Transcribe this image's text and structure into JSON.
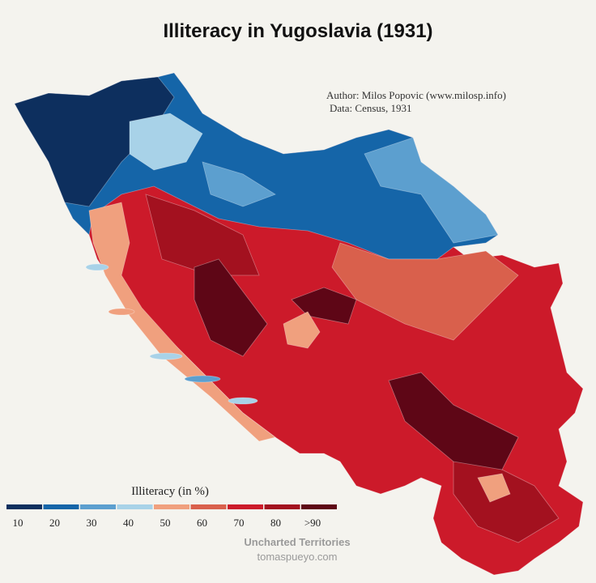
{
  "title": "Illiteracy in Yugoslavia (1931)",
  "credits": [
    "Author: Milos Popovic (www.milosp.info)",
    "Data: Census, 1931"
  ],
  "legend": {
    "title": "Illiteracy (in %)",
    "labels": [
      "10",
      "20",
      "30",
      "40",
      "50",
      "60",
      "70",
      "80",
      ">90"
    ],
    "colors": [
      "#0d2f5e",
      "#1565a8",
      "#5c9fcf",
      "#a8d2e8",
      "#f0a07e",
      "#d9604c",
      "#cc1a2a",
      "#a3111f",
      "#5e0616"
    ]
  },
  "watermark": [
    "Uncharted Territories",
    "tomaspueyo.com"
  ]
}
